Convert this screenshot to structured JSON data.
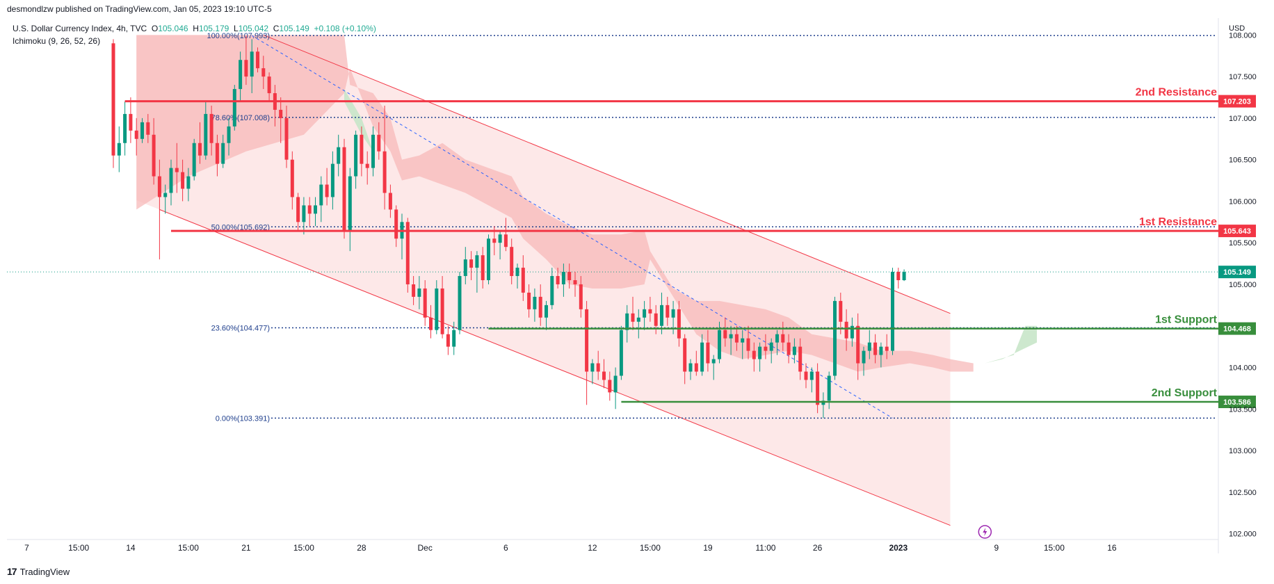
{
  "header": {
    "publisher": "desmondlzw published on TradingView.com, Jan 05, 2023 19:10 UTC-5",
    "symbol": "U.S. Dollar Currency Index, 4h, TVC",
    "open_label": "O",
    "open": "105.046",
    "high_label": "H",
    "high": "105.179",
    "low_label": "L",
    "low": "105.042",
    "close_label": "C",
    "close": "105.149",
    "change": "+0.108 (+0.10%)",
    "indicator": "Ichimoku (9, 26, 52, 26)"
  },
  "brand": {
    "logo": "17",
    "name": "TradingView"
  },
  "colors": {
    "resistance": "#f23645",
    "support": "#388e3c",
    "current": "#089981",
    "fib": "#1e3e8c",
    "up_candle": "#089981",
    "down_candle": "#f23645",
    "channel_fill": "#fde8e8",
    "cloud_red": "#f7b9b9",
    "cloud_green": "#c8e6c9"
  },
  "chart_data": {
    "type": "candlestick",
    "currency_label": "USD",
    "y_ticks": [
      "108.000",
      "107.500",
      "107.000",
      "106.500",
      "106.000",
      "105.500",
      "105.000",
      "104.000",
      "103.500",
      "103.000",
      "102.500",
      "102.000"
    ],
    "ylim": [
      101.98,
      108.12
    ],
    "x_ticks": [
      {
        "label": "7",
        "idx": 2
      },
      {
        "label": "15:00",
        "idx": 11
      },
      {
        "label": "14",
        "idx": 20
      },
      {
        "label": "15:00",
        "idx": 30
      },
      {
        "label": "21",
        "idx": 40
      },
      {
        "label": "15:00",
        "idx": 50
      },
      {
        "label": "28",
        "idx": 60
      },
      {
        "label": "Dec",
        "idx": 71
      },
      {
        "label": "6",
        "idx": 85
      },
      {
        "label": "12",
        "idx": 100
      },
      {
        "label": "15:00",
        "idx": 110
      },
      {
        "label": "19",
        "idx": 120
      },
      {
        "label": "11:00",
        "idx": 130
      },
      {
        "label": "26",
        "idx": 139
      },
      {
        "label": "2023",
        "idx": 153,
        "bold": true
      },
      {
        "label": "9",
        "idx": 170
      },
      {
        "label": "15:00",
        "idx": 180
      },
      {
        "label": "16",
        "idx": 190
      }
    ],
    "horizontal_levels": [
      {
        "label": "2nd Resistance",
        "value": 107.203,
        "price_tag": "107.203",
        "kind": "resistance",
        "start_idx": 19
      },
      {
        "label": "1st Resistance",
        "value": 105.643,
        "price_tag": "105.643",
        "kind": "resistance",
        "start_idx": 27
      },
      {
        "label": "1st Support",
        "value": 104.468,
        "price_tag": "104.468",
        "kind": "support",
        "start_idx": 82
      },
      {
        "label": "2nd Support",
        "value": 103.586,
        "price_tag": "103.586",
        "kind": "support",
        "start_idx": 105
      }
    ],
    "current_price": {
      "value": 105.149,
      "price_tag": "105.149"
    },
    "fibonacci": [
      {
        "label": "100.00%(107.993)",
        "value": 107.993
      },
      {
        "label": "78.60%(107.008)",
        "value": 107.008
      },
      {
        "label": "50.00%(105.692)",
        "value": 105.692
      },
      {
        "label": "23.60%(104.477)",
        "value": 104.477
      },
      {
        "label": "0.00%(103.391)",
        "value": 103.391
      }
    ],
    "fib_start_idx": 41,
    "fib_diagonal": {
      "from": [
        41,
        107.993
      ],
      "to": [
        152,
        103.391
      ]
    },
    "channel": {
      "upper": {
        "from": [
          43,
          108.0
        ],
        "to": [
          162,
          104.65
        ]
      },
      "lower": {
        "from": [
          25,
          105.9
        ],
        "to": [
          162,
          102.1
        ]
      },
      "fill_end_idx": 162
    },
    "candles": [
      [
        17,
        107.9,
        107.95,
        106.4,
        106.55
      ],
      [
        18,
        106.55,
        106.9,
        106.35,
        106.7
      ],
      [
        19,
        106.7,
        107.2,
        106.55,
        107.05
      ],
      [
        20,
        107.05,
        107.25,
        106.7,
        106.85
      ],
      [
        21,
        106.85,
        107.0,
        106.55,
        106.75
      ],
      [
        22,
        106.75,
        107.0,
        106.7,
        106.95
      ],
      [
        23,
        106.95,
        107.05,
        106.7,
        106.8
      ],
      [
        24,
        106.8,
        107.0,
        106.2,
        106.3
      ],
      [
        25,
        106.3,
        106.5,
        105.3,
        106.05
      ],
      [
        26,
        106.05,
        106.2,
        105.85,
        106.1
      ],
      [
        27,
        106.1,
        106.5,
        105.95,
        106.4
      ],
      [
        28,
        106.4,
        106.7,
        106.1,
        106.35
      ],
      [
        29,
        106.35,
        106.5,
        106.0,
        106.15
      ],
      [
        30,
        106.15,
        106.4,
        106.0,
        106.3
      ],
      [
        31,
        106.3,
        106.75,
        106.25,
        106.7
      ],
      [
        32,
        106.7,
        106.95,
        106.45,
        106.55
      ],
      [
        33,
        106.55,
        107.2,
        106.5,
        107.05
      ],
      [
        34,
        107.05,
        107.15,
        106.55,
        106.7
      ],
      [
        35,
        106.7,
        106.8,
        106.3,
        106.45
      ],
      [
        36,
        106.45,
        106.8,
        106.4,
        106.7
      ],
      [
        37,
        106.7,
        107.0,
        106.55,
        106.9
      ],
      [
        38,
        106.9,
        107.4,
        106.85,
        107.35
      ],
      [
        39,
        107.35,
        107.8,
        107.2,
        107.7
      ],
      [
        40,
        107.7,
        107.99,
        107.4,
        107.5
      ],
      [
        41,
        107.5,
        107.95,
        107.3,
        107.8
      ],
      [
        42,
        107.8,
        107.85,
        107.55,
        107.6
      ],
      [
        43,
        107.6,
        107.75,
        107.35,
        107.5
      ],
      [
        44,
        107.5,
        107.55,
        107.2,
        107.3
      ],
      [
        45,
        107.3,
        107.4,
        106.9,
        107.1
      ],
      [
        46,
        107.1,
        107.25,
        106.7,
        107.0
      ],
      [
        47,
        107.0,
        107.15,
        106.4,
        106.5
      ],
      [
        48,
        106.5,
        106.6,
        105.9,
        106.05
      ],
      [
        49,
        106.05,
        106.1,
        105.65,
        105.75
      ],
      [
        50,
        105.75,
        106.05,
        105.6,
        105.95
      ],
      [
        51,
        105.95,
        106.05,
        105.7,
        105.85
      ],
      [
        52,
        105.85,
        106.05,
        105.7,
        105.95
      ],
      [
        53,
        105.95,
        106.3,
        105.75,
        106.2
      ],
      [
        54,
        106.2,
        106.4,
        105.95,
        106.05
      ],
      [
        55,
        106.05,
        106.6,
        105.9,
        106.45
      ],
      [
        56,
        106.45,
        106.8,
        106.3,
        106.65
      ],
      [
        57,
        106.65,
        106.75,
        105.55,
        105.65
      ],
      [
        58,
        105.65,
        106.4,
        105.4,
        106.3
      ],
      [
        59,
        106.3,
        106.85,
        106.15,
        106.8
      ],
      [
        60,
        106.8,
        106.9,
        106.3,
        106.45
      ],
      [
        61,
        106.45,
        106.6,
        106.2,
        106.4
      ],
      [
        62,
        106.4,
        106.9,
        106.3,
        106.8
      ],
      [
        63,
        106.8,
        106.95,
        106.5,
        106.6
      ],
      [
        64,
        106.6,
        107.15,
        105.9,
        106.1
      ],
      [
        65,
        106.1,
        106.2,
        105.8,
        105.9
      ],
      [
        66,
        105.9,
        105.95,
        105.45,
        105.55
      ],
      [
        67,
        105.55,
        105.85,
        105.3,
        105.75
      ],
      [
        68,
        105.75,
        105.8,
        104.9,
        105.0
      ],
      [
        69,
        105.0,
        105.1,
        104.75,
        104.85
      ],
      [
        70,
        104.85,
        105.1,
        104.7,
        104.95
      ],
      [
        71,
        104.95,
        105.05,
        104.5,
        104.6
      ],
      [
        72,
        104.6,
        104.75,
        104.35,
        104.45
      ],
      [
        73,
        104.45,
        105.05,
        104.4,
        104.95
      ],
      [
        74,
        104.95,
        105.1,
        104.35,
        104.4
      ],
      [
        75,
        104.4,
        104.5,
        104.15,
        104.25
      ],
      [
        76,
        104.25,
        104.55,
        104.15,
        104.45
      ],
      [
        77,
        104.45,
        105.15,
        104.4,
        105.1
      ],
      [
        78,
        105.1,
        105.45,
        105.0,
        105.3
      ],
      [
        79,
        105.3,
        105.4,
        105.05,
        105.2
      ],
      [
        80,
        105.2,
        105.4,
        104.9,
        105.35
      ],
      [
        81,
        105.35,
        105.45,
        104.95,
        105.05
      ],
      [
        82,
        105.05,
        105.6,
        105.0,
        105.55
      ],
      [
        83,
        105.55,
        105.7,
        105.35,
        105.5
      ],
      [
        84,
        105.5,
        105.65,
        105.3,
        105.6
      ],
      [
        85,
        105.6,
        105.8,
        105.4,
        105.45
      ],
      [
        86,
        105.45,
        105.55,
        105.0,
        105.1
      ],
      [
        87,
        105.1,
        105.25,
        104.95,
        105.2
      ],
      [
        88,
        105.2,
        105.35,
        104.8,
        104.9
      ],
      [
        89,
        104.9,
        105.0,
        104.6,
        104.7
      ],
      [
        90,
        104.7,
        104.95,
        104.55,
        104.85
      ],
      [
        91,
        104.85,
        105.0,
        104.5,
        104.6
      ],
      [
        92,
        104.6,
        104.8,
        104.45,
        104.75
      ],
      [
        93,
        104.75,
        105.2,
        104.7,
        105.1
      ],
      [
        94,
        105.1,
        105.2,
        104.95,
        105.0
      ],
      [
        95,
        105.0,
        105.25,
        104.85,
        105.15
      ],
      [
        96,
        105.15,
        105.25,
        104.95,
        105.05
      ],
      [
        97,
        105.05,
        105.15,
        104.85,
        105.0
      ],
      [
        98,
        105.0,
        105.1,
        104.6,
        104.7
      ],
      [
        99,
        104.7,
        104.8,
        103.55,
        103.95
      ],
      [
        100,
        103.95,
        104.1,
        103.8,
        104.05
      ],
      [
        101,
        104.05,
        104.2,
        103.85,
        103.95
      ],
      [
        102,
        103.95,
        104.1,
        103.75,
        103.85
      ],
      [
        103,
        103.85,
        103.95,
        103.6,
        103.7
      ],
      [
        104,
        103.7,
        104.0,
        103.5,
        103.9
      ],
      [
        105,
        103.9,
        104.5,
        103.85,
        104.45
      ],
      [
        106,
        104.45,
        104.75,
        104.3,
        104.65
      ],
      [
        107,
        104.65,
        104.85,
        104.45,
        104.55
      ],
      [
        108,
        104.55,
        104.7,
        104.35,
        104.6
      ],
      [
        109,
        104.6,
        104.8,
        104.45,
        104.7
      ],
      [
        110,
        104.7,
        104.85,
        104.55,
        104.65
      ],
      [
        111,
        104.65,
        104.75,
        104.4,
        104.5
      ],
      [
        112,
        104.5,
        104.9,
        104.4,
        104.75
      ],
      [
        113,
        104.75,
        104.85,
        104.5,
        104.6
      ],
      [
        114,
        104.6,
        104.8,
        104.4,
        104.7
      ],
      [
        115,
        104.7,
        104.8,
        104.25,
        104.35
      ],
      [
        116,
        104.35,
        104.4,
        103.8,
        103.95
      ],
      [
        117,
        103.95,
        104.1,
        103.85,
        104.05
      ],
      [
        118,
        104.05,
        104.2,
        103.9,
        103.95
      ],
      [
        119,
        103.95,
        104.4,
        103.9,
        104.3
      ],
      [
        120,
        104.3,
        104.45,
        103.95,
        104.05
      ],
      [
        121,
        104.05,
        104.15,
        103.85,
        104.1
      ],
      [
        122,
        104.1,
        104.55,
        104.05,
        104.45
      ],
      [
        123,
        104.45,
        104.6,
        104.25,
        104.35
      ],
      [
        124,
        104.35,
        104.5,
        104.15,
        104.4
      ],
      [
        125,
        104.4,
        104.5,
        104.2,
        104.3
      ],
      [
        126,
        104.3,
        104.45,
        104.1,
        104.35
      ],
      [
        127,
        104.35,
        104.5,
        104.1,
        104.2
      ],
      [
        128,
        104.2,
        104.3,
        103.95,
        104.1
      ],
      [
        129,
        104.1,
        104.3,
        103.95,
        104.25
      ],
      [
        130,
        104.25,
        104.4,
        104.1,
        104.2
      ],
      [
        131,
        104.2,
        104.35,
        104.05,
        104.3
      ],
      [
        132,
        104.3,
        104.45,
        104.15,
        104.4
      ],
      [
        133,
        104.4,
        104.55,
        104.2,
        104.3
      ],
      [
        134,
        104.3,
        104.4,
        104.05,
        104.15
      ],
      [
        135,
        104.15,
        104.35,
        104.05,
        104.25
      ],
      [
        136,
        104.25,
        104.35,
        103.85,
        103.95
      ],
      [
        137,
        103.95,
        104.05,
        103.75,
        103.85
      ],
      [
        138,
        103.85,
        104.0,
        103.7,
        103.95
      ],
      [
        139,
        103.95,
        104.05,
        103.45,
        103.55
      ],
      [
        140,
        103.55,
        103.7,
        103.39,
        103.6
      ],
      [
        141,
        103.6,
        103.95,
        103.5,
        103.9
      ],
      [
        142,
        103.9,
        104.85,
        103.85,
        104.8
      ],
      [
        143,
        104.8,
        104.9,
        104.4,
        104.55
      ],
      [
        144,
        104.55,
        104.7,
        104.2,
        104.35
      ],
      [
        145,
        104.35,
        104.6,
        104.25,
        104.5
      ],
      [
        146,
        104.5,
        104.65,
        103.85,
        104.05
      ],
      [
        147,
        104.05,
        104.25,
        103.9,
        104.2
      ],
      [
        148,
        104.2,
        104.45,
        104.1,
        104.3
      ],
      [
        149,
        104.3,
        104.4,
        104.05,
        104.15
      ],
      [
        150,
        104.15,
        104.3,
        104.0,
        104.25
      ],
      [
        151,
        104.25,
        104.4,
        104.1,
        104.2
      ],
      [
        152,
        104.2,
        105.2,
        104.15,
        105.15
      ],
      [
        153,
        105.15,
        105.2,
        104.95,
        105.05
      ],
      [
        154,
        105.05,
        105.18,
        105.04,
        105.149
      ]
    ],
    "cloud": [
      [
        21,
        108.0,
        105.9
      ],
      [
        30,
        108.0,
        106.3
      ],
      [
        40,
        108.0,
        106.6
      ],
      [
        50,
        108.0,
        106.8
      ],
      [
        57,
        108.0,
        107.3
      ],
      [
        58,
        107.4,
        107.6
      ],
      [
        62,
        107.3,
        106.9
      ],
      [
        65,
        107.0,
        106.6
      ],
      [
        67,
        106.5,
        106.25
      ],
      [
        70,
        106.55,
        106.3
      ],
      [
        74,
        106.7,
        106.2
      ],
      [
        78,
        106.5,
        106.1
      ],
      [
        82,
        106.4,
        105.95
      ],
      [
        86,
        106.3,
        105.8
      ],
      [
        88,
        106.05,
        105.55
      ],
      [
        92,
        105.85,
        105.3
      ],
      [
        96,
        105.7,
        105.0
      ],
      [
        100,
        105.6,
        104.95
      ],
      [
        105,
        105.6,
        104.95
      ],
      [
        109,
        105.65,
        105.0
      ],
      [
        110,
        105.4,
        105.3
      ],
      [
        114,
        104.95,
        104.85
      ],
      [
        118,
        104.8,
        104.4
      ],
      [
        122,
        104.8,
        104.2
      ],
      [
        126,
        104.75,
        104.1
      ],
      [
        130,
        104.7,
        104.15
      ],
      [
        134,
        104.6,
        104.2
      ],
      [
        138,
        104.4,
        104.15
      ],
      [
        142,
        104.35,
        104.05
      ],
      [
        146,
        104.3,
        103.95
      ],
      [
        150,
        104.2,
        104.0
      ],
      [
        155,
        104.2,
        104.05
      ],
      [
        159,
        104.15,
        104.0
      ],
      [
        162,
        104.1,
        103.95
      ],
      [
        166,
        104.05,
        103.95
      ]
    ]
  }
}
